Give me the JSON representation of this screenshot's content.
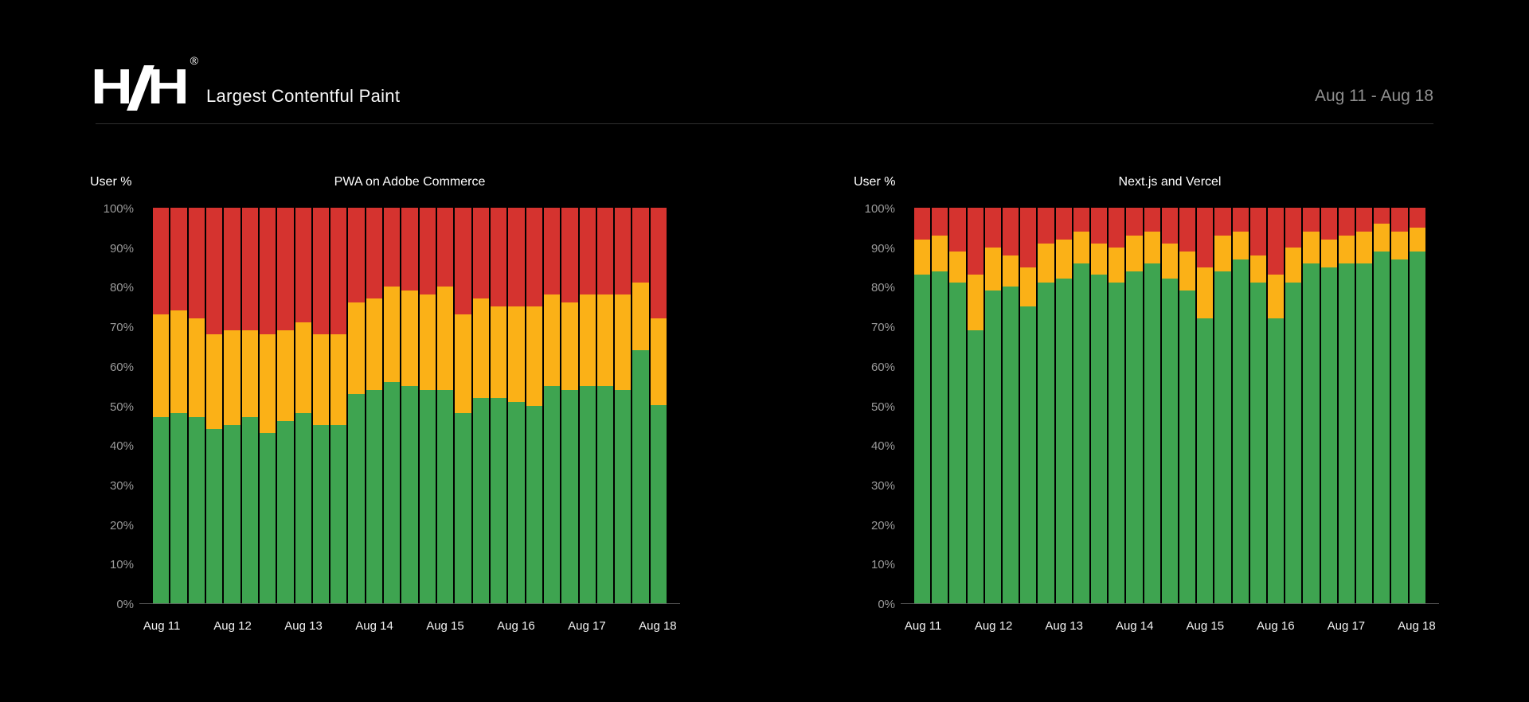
{
  "header": {
    "logo": {
      "left_letter": "H",
      "right_letter": "H",
      "registered_mark": "®"
    },
    "title": "Largest Contentful Paint",
    "date_range": "Aug 11 - Aug 18"
  },
  "colors": {
    "background": "#000000",
    "good": "#3EA450",
    "needs_improvement": "#FBB117",
    "poor": "#D5332F",
    "axis_line": "#606060",
    "y_tick_label": "#9A9A9A",
    "x_tick_label": "#F2F2F2",
    "divider": "#2E2E2E",
    "date_text": "#8F8F8F"
  },
  "chart_data": [
    {
      "type": "bar",
      "stacked": true,
      "title": "PWA on Adobe Commerce",
      "ylabel": "User %",
      "ylim": [
        0,
        100
      ],
      "grid": false,
      "legend": false,
      "n_bars": 29,
      "y_tick_labels": [
        "100%",
        "90%",
        "80%",
        "70%",
        "60%",
        "50%",
        "40%",
        "30%",
        "20%",
        "10%",
        "0%"
      ],
      "x_tick_labels": [
        "Aug 11",
        "Aug 12",
        "Aug 13",
        "Aug 14",
        "Aug 15",
        "Aug 16",
        "Aug 17",
        "Aug 18"
      ],
      "x_tick_bar_indices": [
        0,
        4,
        8,
        12,
        16,
        20,
        24,
        28
      ],
      "series": [
        {
          "name": "good",
          "color": "#3EA450",
          "values": [
            47,
            48,
            47,
            44,
            45,
            47,
            43,
            46,
            48,
            45,
            45,
            53,
            54,
            56,
            55,
            54,
            54,
            48,
            52,
            52,
            51,
            50,
            55,
            54,
            55,
            55,
            54,
            64,
            50
          ]
        },
        {
          "name": "needs improvement",
          "color": "#FBB117",
          "values": [
            26,
            26,
            25,
            24,
            24,
            22,
            25,
            23,
            23,
            23,
            23,
            23,
            23,
            24,
            24,
            24,
            26,
            25,
            25,
            23,
            24,
            25,
            23,
            22,
            23,
            23,
            24,
            17,
            22
          ]
        },
        {
          "name": "poor",
          "color": "#D5332F",
          "values": [
            27,
            26,
            28,
            32,
            31,
            31,
            32,
            31,
            29,
            32,
            32,
            24,
            23,
            20,
            21,
            22,
            20,
            27,
            23,
            25,
            25,
            25,
            22,
            24,
            22,
            22,
            22,
            19,
            28
          ]
        }
      ]
    },
    {
      "type": "bar",
      "stacked": true,
      "title": "Next.js and Vercel",
      "ylabel": "User %",
      "ylim": [
        0,
        100
      ],
      "grid": false,
      "legend": false,
      "n_bars": 29,
      "y_tick_labels": [
        "100%",
        "90%",
        "80%",
        "70%",
        "60%",
        "50%",
        "40%",
        "30%",
        "20%",
        "10%",
        "0%"
      ],
      "x_tick_labels": [
        "Aug 11",
        "Aug 12",
        "Aug 13",
        "Aug 14",
        "Aug 15",
        "Aug 16",
        "Aug 17",
        "Aug 18"
      ],
      "x_tick_bar_indices": [
        0,
        4,
        8,
        12,
        16,
        20,
        24,
        28
      ],
      "series": [
        {
          "name": "good",
          "color": "#3EA450",
          "values": [
            83,
            84,
            81,
            69,
            79,
            80,
            75,
            81,
            82,
            86,
            83,
            81,
            84,
            86,
            82,
            79,
            72,
            84,
            87,
            81,
            72,
            81,
            86,
            85,
            86,
            86,
            89,
            87,
            89
          ]
        },
        {
          "name": "needs improvement",
          "color": "#FBB117",
          "values": [
            9,
            9,
            8,
            14,
            11,
            8,
            10,
            10,
            10,
            8,
            8,
            9,
            9,
            8,
            9,
            10,
            13,
            9,
            7,
            7,
            11,
            9,
            8,
            7,
            7,
            8,
            7,
            7,
            6
          ]
        },
        {
          "name": "poor",
          "color": "#D5332F",
          "values": [
            8,
            7,
            11,
            17,
            10,
            12,
            15,
            9,
            8,
            6,
            9,
            10,
            7,
            6,
            9,
            11,
            15,
            7,
            6,
            12,
            17,
            10,
            6,
            8,
            7,
            6,
            4,
            6,
            5
          ]
        }
      ]
    }
  ]
}
